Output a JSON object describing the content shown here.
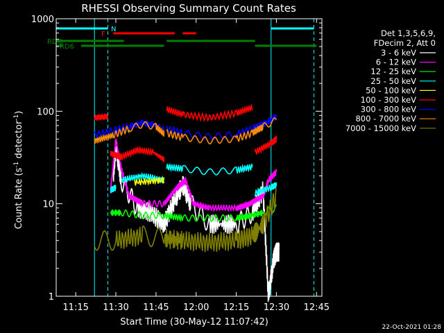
{
  "chart_data": {
    "type": "line",
    "title": "RHESSI Observing Summary Count Rates",
    "xlabel": "Start Time (30-May-12 11:07:42)",
    "ylabel_main": "Count Rate (s",
    "ylabel_sup1": "-1",
    "ylabel_mid": " detector",
    "ylabel_sup2": "-1",
    "ylabel_end": ")",
    "y_scale": "log",
    "ylim": [
      1,
      1000
    ],
    "xlim": [
      "11:07:42",
      "12:47:00"
    ],
    "x_ticks": [
      "11:15",
      "11:30",
      "11:45",
      "12:00",
      "12:15",
      "12:30",
      "12:45"
    ],
    "y_ticks": [
      "1",
      "10",
      "100",
      "1000"
    ],
    "legend_header": [
      "Det 1,3,5,6,9,",
      "FDecim 2, Att 0"
    ],
    "footer_date": "22-Oct-2021 01:28",
    "series": [
      {
        "name": "3 - 6 keV",
        "color": "#ffffff",
        "segments": [
          [
            [
              "11:29",
              20
            ],
            [
              "11:30",
              42
            ],
            [
              "11:32",
              18
            ],
            [
              "11:38",
              9
            ],
            [
              "11:43",
              8
            ],
            [
              "11:48",
              6
            ],
            [
              "11:52",
              11
            ],
            [
              "11:55",
              16
            ],
            [
              "11:58",
              10
            ],
            [
              "12:05",
              6
            ],
            [
              "12:15",
              6
            ],
            [
              "12:21",
              8
            ],
            [
              "12:25",
              14
            ],
            [
              "12:27",
              1
            ],
            [
              "12:29",
              2.5
            ],
            [
              "12:30",
              3
            ],
            [
              "12:31",
              3
            ]
          ]
        ]
      },
      {
        "name": "6 - 12 keV",
        "color": "#ff00ff",
        "segments": [
          [
            [
              "11:28",
              14
            ],
            [
              "11:30",
              48
            ],
            [
              "11:32",
              24
            ],
            [
              "11:35",
              12
            ],
            [
              "11:40",
              10
            ],
            [
              "11:48",
              10
            ],
            [
              "11:53",
              15
            ],
            [
              "11:56",
              18
            ],
            [
              "11:59",
              10
            ],
            [
              "12:05",
              9
            ],
            [
              "12:15",
              9
            ],
            [
              "12:20",
              10
            ],
            [
              "12:25",
              12
            ],
            [
              "12:27",
              18
            ],
            [
              "12:30",
              22
            ]
          ]
        ]
      },
      {
        "name": "12 - 25 keV",
        "color": "#00ff00",
        "segments": [
          [
            [
              "11:28",
              8
            ],
            [
              "11:32",
              8
            ],
            [
              "11:40",
              7.5
            ],
            [
              "11:48",
              7.5
            ],
            [
              "11:55",
              7
            ],
            [
              "12:05",
              7
            ],
            [
              "12:15",
              7
            ],
            [
              "12:21",
              7.5
            ],
            [
              "12:25",
              8
            ],
            [
              "12:30",
              9
            ]
          ]
        ]
      },
      {
        "name": "25 - 50 keV",
        "color": "#00ffff",
        "segments": [
          [
            [
              "11:28",
              14
            ],
            [
              "11:30",
              15
            ]
          ],
          [
            [
              "11:32",
              18
            ],
            [
              "11:40",
              20
            ],
            [
              "11:48",
              18
            ]
          ],
          [
            [
              "11:49",
              25
            ],
            [
              "11:55",
              24
            ],
            [
              "12:05",
              22
            ],
            [
              "12:15",
              23
            ],
            [
              "12:21",
              25
            ]
          ],
          [
            [
              "12:22",
              13
            ],
            [
              "12:28",
              15
            ],
            [
              "12:30",
              16
            ]
          ]
        ]
      },
      {
        "name": "50 - 100 keV",
        "color": "#ffff00",
        "segments": [
          [
            [
              "11:37",
              17
            ],
            [
              "11:48",
              18
            ]
          ]
        ]
      },
      {
        "name": "100 - 300 keV",
        "color": "#ff0000",
        "segments": [
          [
            [
              "11:22",
              85
            ],
            [
              "11:27",
              88
            ]
          ],
          [
            [
              "11:28",
              35
            ],
            [
              "11:32",
              32
            ],
            [
              "11:38",
              38
            ],
            [
              "11:44",
              36
            ],
            [
              "11:48",
              30
            ]
          ],
          [
            [
              "11:49",
              105
            ],
            [
              "11:55",
              92
            ],
            [
              "12:05",
              85
            ],
            [
              "12:15",
              95
            ],
            [
              "12:21",
              110
            ]
          ],
          [
            [
              "12:22",
              36
            ],
            [
              "12:28",
              45
            ],
            [
              "12:30",
              50
            ]
          ]
        ]
      },
      {
        "name": "300 - 800 keV",
        "color": "#0000ff",
        "segments": [
          [
            [
              "11:22",
              55
            ],
            [
              "11:29",
              62
            ],
            [
              "11:35",
              68
            ],
            [
              "11:40",
              75
            ],
            [
              "11:45",
              70
            ],
            [
              "11:48",
              62
            ]
          ],
          [
            [
              "11:49",
              65
            ],
            [
              "11:55",
              58
            ],
            [
              "12:05",
              53
            ],
            [
              "12:15",
              56
            ],
            [
              "12:21",
              65
            ],
            [
              "12:25",
              72
            ],
            [
              "12:30",
              88
            ]
          ]
        ]
      },
      {
        "name": "800 - 7000 keV",
        "color": "#ff8c00",
        "segments": [
          [
            [
              "11:22",
              48
            ],
            [
              "11:29",
              55
            ],
            [
              "11:35",
              65
            ],
            [
              "11:40",
              72
            ],
            [
              "11:45",
              68
            ],
            [
              "11:48",
              57
            ]
          ],
          [
            [
              "11:49",
              58
            ],
            [
              "11:55",
              52
            ],
            [
              "12:05",
              48
            ],
            [
              "12:15",
              50
            ],
            [
              "12:21",
              58
            ],
            [
              "12:25",
              68
            ],
            [
              "12:30",
              80
            ]
          ]
        ]
      },
      {
        "name": "7000 - 15000 keV",
        "color": "#808000",
        "segments": [
          [
            [
              "11:22",
              4
            ],
            [
              "11:30",
              4
            ],
            [
              "11:40",
              4.5
            ],
            [
              "11:48",
              4.2
            ],
            [
              "11:55",
              4
            ],
            [
              "12:05",
              3.8
            ],
            [
              "12:15",
              4
            ],
            [
              "12:21",
              4.5
            ],
            [
              "12:25",
              6
            ],
            [
              "12:30",
              12
            ]
          ]
        ]
      }
    ],
    "flag_rows": [
      {
        "name": "SAA",
        "text": "",
        "color": "#00ffff",
        "segments": [
          [
            "11:07:42",
            "11:27"
          ],
          [
            "12:28",
            "12:44"
          ]
        ]
      },
      {
        "name": "N",
        "text": "N",
        "color": "#00ffff",
        "segments": []
      },
      {
        "name": "F",
        "text": "F",
        "color": "#ff0000",
        "segments": [
          [
            "11:29",
            "11:52"
          ],
          [
            "11:55",
            "12:00"
          ]
        ]
      },
      {
        "name": "RDO",
        "text": "RDO",
        "color": "#008000",
        "segments": [
          [
            "11:07:42",
            "11:33"
          ],
          [
            "11:49",
            "12:22"
          ]
        ]
      },
      {
        "name": "RD6",
        "text": "RD6",
        "color": "#008000",
        "segments": [
          [
            "11:07:42",
            "11:10"
          ],
          [
            "11:17",
            "11:48"
          ],
          [
            "12:22",
            "12:45"
          ]
        ]
      }
    ],
    "dashed_markers": {
      "color": "#00ffff",
      "x": [
        "11:27",
        "12:44"
      ]
    },
    "solid_markers": {
      "color": "#00ffff",
      "x": [
        "11:07:42",
        "11:22",
        "12:28"
      ]
    },
    "grid": false,
    "legend": "right"
  }
}
